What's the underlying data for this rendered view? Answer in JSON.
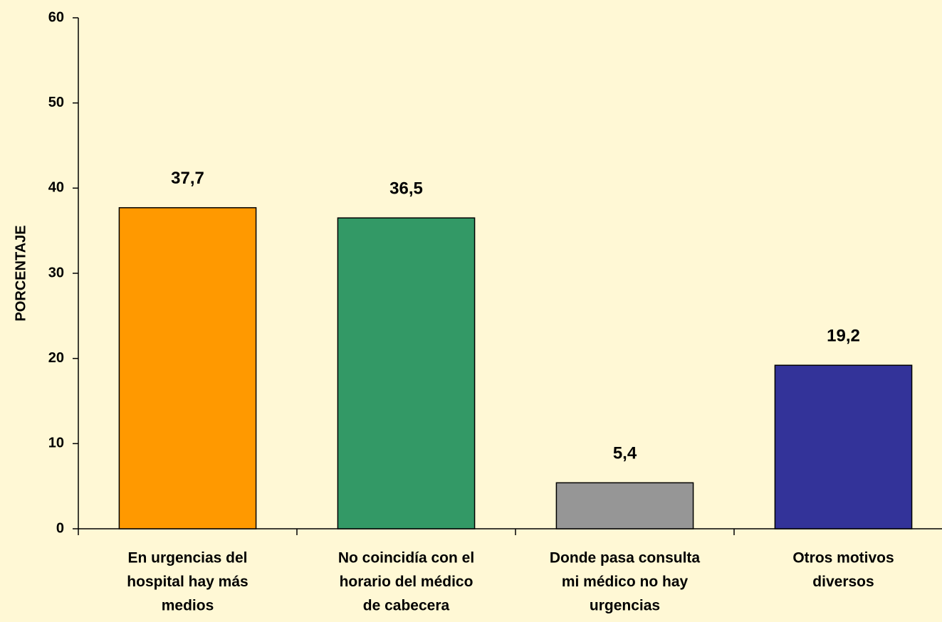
{
  "chart_data": {
    "type": "bar",
    "y_label": "PORCENTAJE",
    "categories": [
      [
        "En urgencias del",
        "hospital hay más",
        "medios"
      ],
      [
        "No coincidía con el",
        "horario del médico",
        "de cabecera"
      ],
      [
        "Donde pasa consulta",
        "mi médico no hay",
        "urgencias"
      ],
      [
        "Otros motivos",
        "diversos"
      ]
    ],
    "values": [
      37.7,
      36.5,
      5.4,
      19.2
    ],
    "value_labels": [
      "37,7",
      "36,5",
      "5,4",
      "19,2"
    ],
    "colors": [
      "#ff9900",
      "#339966",
      "#969696",
      "#333399"
    ],
    "ylim": [
      0,
      60
    ],
    "yticks": [
      0,
      10,
      20,
      30,
      40,
      50,
      60
    ],
    "grid": false
  }
}
